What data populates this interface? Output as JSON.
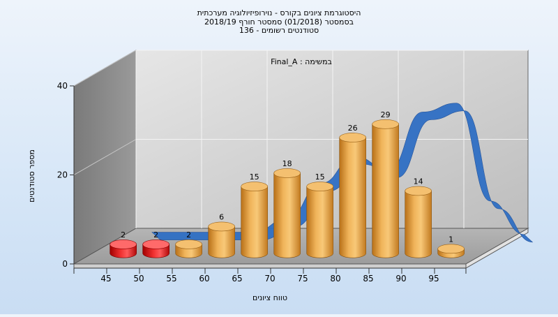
{
  "chart_data": {
    "type": "bar",
    "title_lines": [
      "היסטוגרמת ציונים בקורס - נוירופיזיולוגיה מערכתית",
      "בסמסטר  (01/2018)  סמסטר חורף 2018/19",
      "סטודנטים רשומים - 136"
    ],
    "annotation": "במשימה : Final_A",
    "xlabel": "טווח ציונים",
    "ylabel": "מספר סטודנטים",
    "ylim": [
      0,
      40
    ],
    "yticks": [
      0,
      20,
      40
    ],
    "categories": [
      "45",
      "50",
      "55",
      "60",
      "65",
      "70",
      "75",
      "80",
      "85",
      "90",
      "95"
    ],
    "values": [
      2,
      2,
      2,
      6,
      15,
      18,
      15,
      26,
      29,
      14,
      1
    ],
    "bar_colors": [
      "#e01010",
      "#e01010",
      "#e8a23c",
      "#e8a23c",
      "#e8a23c",
      "#e8a23c",
      "#e8a23c",
      "#e8a23c",
      "#e8a23c",
      "#e8a23c",
      "#e8a23c"
    ],
    "curve": {
      "type": "line",
      "color": "#2f6fc4",
      "values": [
        1,
        1,
        1,
        1,
        4,
        12,
        18,
        15,
        28,
        30,
        8,
        0.5
      ]
    },
    "grid": true
  }
}
